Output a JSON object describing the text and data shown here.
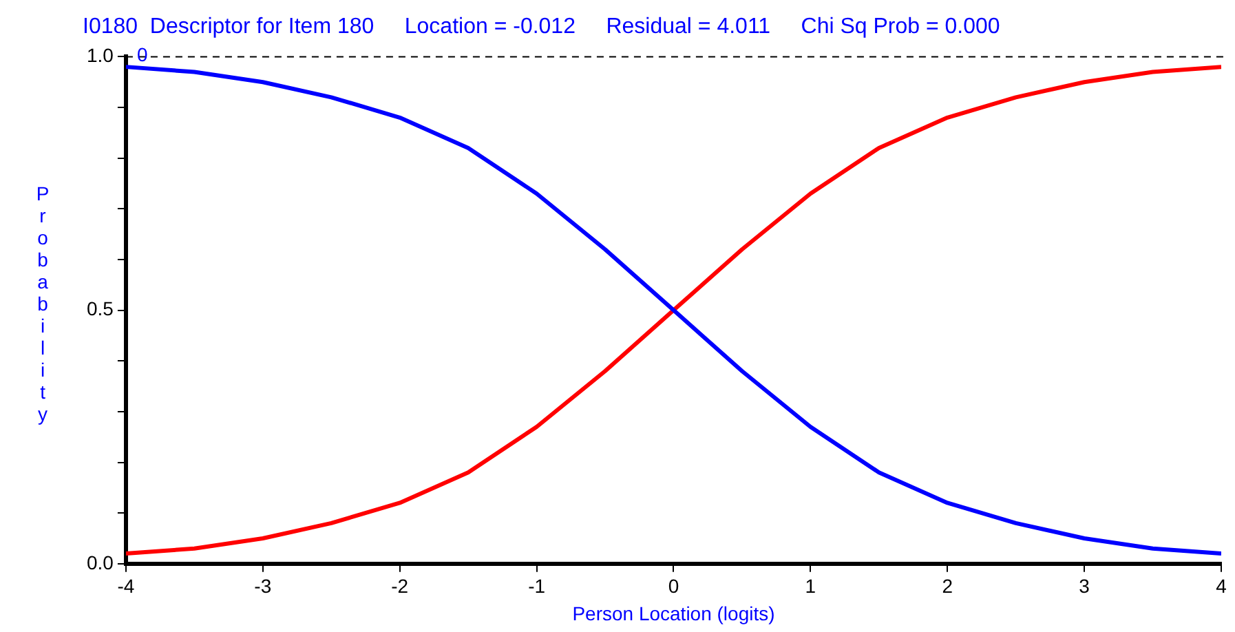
{
  "chart_data": {
    "type": "line",
    "title": "I0180  Descriptor for Item 180     Location = -0.012     Residual = 4.011     Chi Sq Prob = 0.000",
    "xlabel": "Person Location (logits)",
    "ylabel": "Probability",
    "x": [
      -4,
      -3.5,
      -3,
      -2.5,
      -2,
      -1.5,
      -1,
      -0.5,
      0,
      0.5,
      1,
      1.5,
      2,
      2.5,
      3,
      3.5,
      4
    ],
    "series": [
      {
        "name": "0",
        "color": "#0000ff",
        "values": [
          0.98,
          0.97,
          0.95,
          0.92,
          0.88,
          0.82,
          0.73,
          0.62,
          0.5,
          0.38,
          0.27,
          0.18,
          0.12,
          0.08,
          0.05,
          0.03,
          0.02
        ]
      },
      {
        "color": "#ff0000",
        "values": [
          0.02,
          0.03,
          0.05,
          0.08,
          0.12,
          0.18,
          0.27,
          0.38,
          0.5,
          0.62,
          0.73,
          0.82,
          0.88,
          0.92,
          0.95,
          0.97,
          0.98
        ]
      }
    ],
    "xlim": [
      -4,
      4
    ],
    "xticks": [
      -4,
      -3,
      -2,
      -1,
      0,
      1,
      2,
      3,
      4
    ],
    "ylim": [
      0,
      1
    ],
    "yticks": [
      {
        "value": 0,
        "label": "0.0"
      },
      {
        "value": 0.1,
        "label": null
      },
      {
        "value": 0.2,
        "label": null
      },
      {
        "value": 0.3,
        "label": null
      },
      {
        "value": 0.4,
        "label": null
      },
      {
        "value": 0.5,
        "label": "0.5"
      },
      {
        "value": 0.6,
        "label": null
      },
      {
        "value": 0.7,
        "label": null
      },
      {
        "value": 0.8,
        "label": null
      },
      {
        "value": 0.9,
        "label": null
      },
      {
        "value": 1,
        "label": "1.0"
      }
    ],
    "ref_lines": [
      {
        "axis": "y",
        "value": 1,
        "color": "#000000",
        "line_style": "dashed"
      }
    ],
    "grid": false,
    "legend": false,
    "marker": "none",
    "line_style": "solid"
  }
}
